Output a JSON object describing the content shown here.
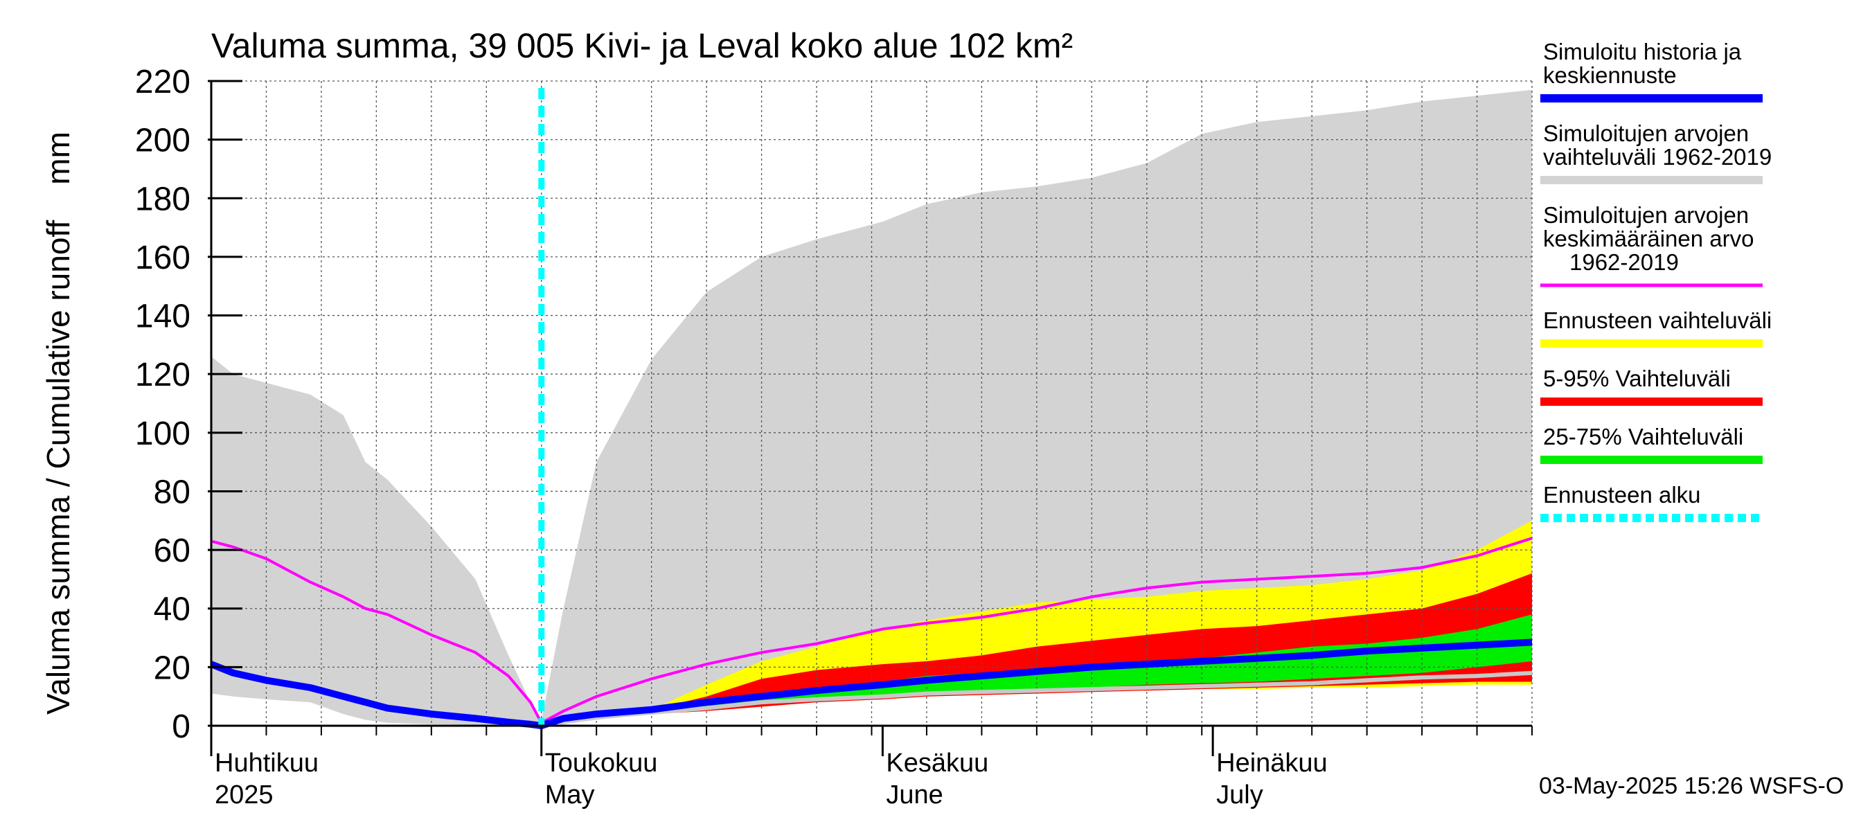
{
  "chart_data": {
    "type": "area",
    "title": "Valuma summa, 39 005 Kivi- ja Leval koko alue 102 km²",
    "ylabel": "Valuma summa / Cumulative runoff    mm",
    "ylim": [
      0,
      220
    ],
    "yticks": [
      0,
      20,
      40,
      60,
      80,
      100,
      120,
      140,
      160,
      180,
      200,
      220
    ],
    "xlim": [
      0,
      120
    ],
    "forecast_start_day": 30,
    "month_ticks": [
      {
        "day": 0,
        "fi": "Huhtikuu",
        "en": "2025"
      },
      {
        "day": 30,
        "fi": "Toukokuu",
        "en": "May"
      },
      {
        "day": 61,
        "fi": "Kesäkuu",
        "en": "June"
      },
      {
        "day": 91,
        "fi": "Heinäkuu",
        "en": "July"
      }
    ],
    "x": [
      0,
      2,
      5,
      9,
      12,
      14,
      16,
      20,
      24,
      27,
      29,
      30,
      32,
      35,
      40,
      45,
      50,
      55,
      61,
      65,
      70,
      75,
      80,
      85,
      90,
      95,
      100,
      105,
      110,
      115,
      120
    ],
    "series": [
      {
        "name": "Simuloitujen arvojen vaihteluväli 1962-2019 (max)",
        "role": "hist_max",
        "color": "#d3d3d3",
        "values": [
          126,
          120,
          117,
          113,
          106,
          90,
          84,
          68,
          50,
          24,
          8,
          2,
          40,
          90,
          125,
          148,
          160,
          166,
          172,
          178,
          182,
          184,
          187,
          192,
          202,
          206,
          208,
          210,
          213,
          215,
          217
        ]
      },
      {
        "name": "Simuloitujen arvojen vaihteluväli 1962-2019 (min)",
        "role": "hist_min",
        "color": "#d3d3d3",
        "values": [
          11,
          10,
          9,
          8,
          4,
          2,
          1,
          0.5,
          0.3,
          0.2,
          0.1,
          0,
          0.5,
          2,
          4,
          6,
          8,
          9,
          10,
          10.5,
          11,
          11.5,
          12,
          12.5,
          13,
          13.5,
          14,
          14.5,
          15,
          15.5,
          16
        ]
      },
      {
        "name": "Ennusteen vaihteluväli (max)",
        "role": "fc_max",
        "color": "#ffff00",
        "values": [
          null,
          null,
          null,
          null,
          null,
          null,
          null,
          null,
          null,
          null,
          null,
          0,
          2.5,
          4,
          5.5,
          14,
          22,
          27,
          33,
          36,
          39,
          42,
          43,
          44,
          46,
          47,
          48,
          50,
          53,
          60,
          70
        ]
      },
      {
        "name": "Ennusteen vaihteluväli (min)",
        "role": "fc_min",
        "color": "#ffff00",
        "values": [
          null,
          null,
          null,
          null,
          null,
          null,
          null,
          null,
          null,
          null,
          null,
          0,
          1,
          2.5,
          4,
          5,
          6.5,
          8,
          9,
          10,
          10.5,
          11,
          11.5,
          12,
          12.5,
          12.5,
          13,
          13,
          13.5,
          14,
          14
        ]
      },
      {
        "name": "5-95% Vaihteluväli (upper)",
        "role": "p95",
        "color": "#ff0000",
        "values": [
          null,
          null,
          null,
          null,
          null,
          null,
          null,
          null,
          null,
          null,
          null,
          0,
          2.5,
          4,
          5.5,
          10,
          16,
          19,
          21,
          22,
          24,
          27,
          29,
          31,
          33,
          34,
          36,
          38,
          40,
          45,
          52
        ]
      },
      {
        "name": "5-95% Vaihteluväli (lower)",
        "role": "p5",
        "color": "#ff0000",
        "values": [
          null,
          null,
          null,
          null,
          null,
          null,
          null,
          null,
          null,
          null,
          null,
          0,
          1.2,
          3,
          4,
          5,
          6.5,
          8,
          9,
          10,
          10.5,
          11,
          11.5,
          12,
          12.5,
          13,
          13.5,
          14,
          14.5,
          15,
          15
        ]
      },
      {
        "name": "25-75% Vaihteluväli (upper)",
        "role": "p75",
        "color": "#00ee00",
        "values": [
          null,
          null,
          null,
          null,
          null,
          null,
          null,
          null,
          null,
          null,
          null,
          0,
          2.5,
          4,
          5.5,
          8,
          11,
          13,
          15,
          17,
          18,
          19,
          20.5,
          22,
          23,
          25,
          27,
          28,
          30,
          33,
          38
        ]
      },
      {
        "name": "25-75% Vaihteluväli (lower)",
        "role": "p25",
        "color": "#00ee00",
        "values": [
          null,
          null,
          null,
          null,
          null,
          null,
          null,
          null,
          null,
          null,
          null,
          0,
          2,
          3.5,
          5,
          6.5,
          8,
          9,
          10,
          11,
          12,
          12.5,
          13,
          14,
          14.5,
          15,
          16,
          17,
          18,
          20,
          22
        ]
      },
      {
        "name": "Simuloitu historia ja keskiennuste",
        "role": "median",
        "color": "#0000ff",
        "values": [
          21,
          18,
          15.5,
          13,
          10,
          8,
          6,
          4,
          2.5,
          1.2,
          0.5,
          0,
          2.5,
          4,
          5.5,
          8,
          10,
          12,
          14,
          15.5,
          17,
          18.5,
          20,
          21,
          22,
          23,
          24,
          25.5,
          26.5,
          27.5,
          28.5
        ]
      },
      {
        "name": "Simuloitujen arvojen keskimääräinen arvo 1962-2019",
        "role": "mean",
        "color": "#ff00ff",
        "values": [
          63,
          61,
          57,
          49,
          44,
          40,
          38,
          31,
          25,
          17,
          8,
          1,
          5,
          10,
          16,
          21,
          25,
          28,
          33,
          35,
          37,
          40,
          44,
          47,
          49,
          50,
          51,
          52,
          54,
          58,
          64
        ]
      },
      {
        "name": "Lowest forecast member",
        "role": "low_line",
        "color": "#c8c8c8",
        "values": [
          null,
          null,
          null,
          null,
          null,
          null,
          null,
          null,
          null,
          null,
          null,
          0,
          1.5,
          3,
          4.5,
          6,
          8,
          9,
          10,
          11,
          11.5,
          12,
          12.5,
          13,
          13.5,
          14,
          14.5,
          15.5,
          16.5,
          17,
          18
        ]
      }
    ],
    "legend": {
      "placement": "right",
      "items": [
        {
          "lines": [
            "Simuloitu historia ja",
            "keskiennuste"
          ],
          "color": "#0000ff",
          "style": "solid"
        },
        {
          "lines": [
            "Simuloitujen arvojen",
            "vaihteluväli 1962-2019"
          ],
          "color": "#d3d3d3",
          "style": "solid"
        },
        {
          "lines": [
            "Simuloitujen arvojen",
            "keskimääräinen arvo",
            "1962-2019"
          ],
          "color": "#ff00ff",
          "style": "thin"
        },
        {
          "lines": [
            "Ennusteen vaihteluväli"
          ],
          "color": "#ffff00",
          "style": "solid"
        },
        {
          "lines": [
            "5-95% Vaihteluväli"
          ],
          "color": "#ff0000",
          "style": "solid"
        },
        {
          "lines": [
            "25-75% Vaihteluväli"
          ],
          "color": "#00ee00",
          "style": "solid"
        },
        {
          "lines": [
            "Ennusteen alku"
          ],
          "color": "#00ffff",
          "style": "dashed"
        }
      ]
    },
    "footer": "03-May-2025 15:26 WSFS-O",
    "grid": true
  }
}
